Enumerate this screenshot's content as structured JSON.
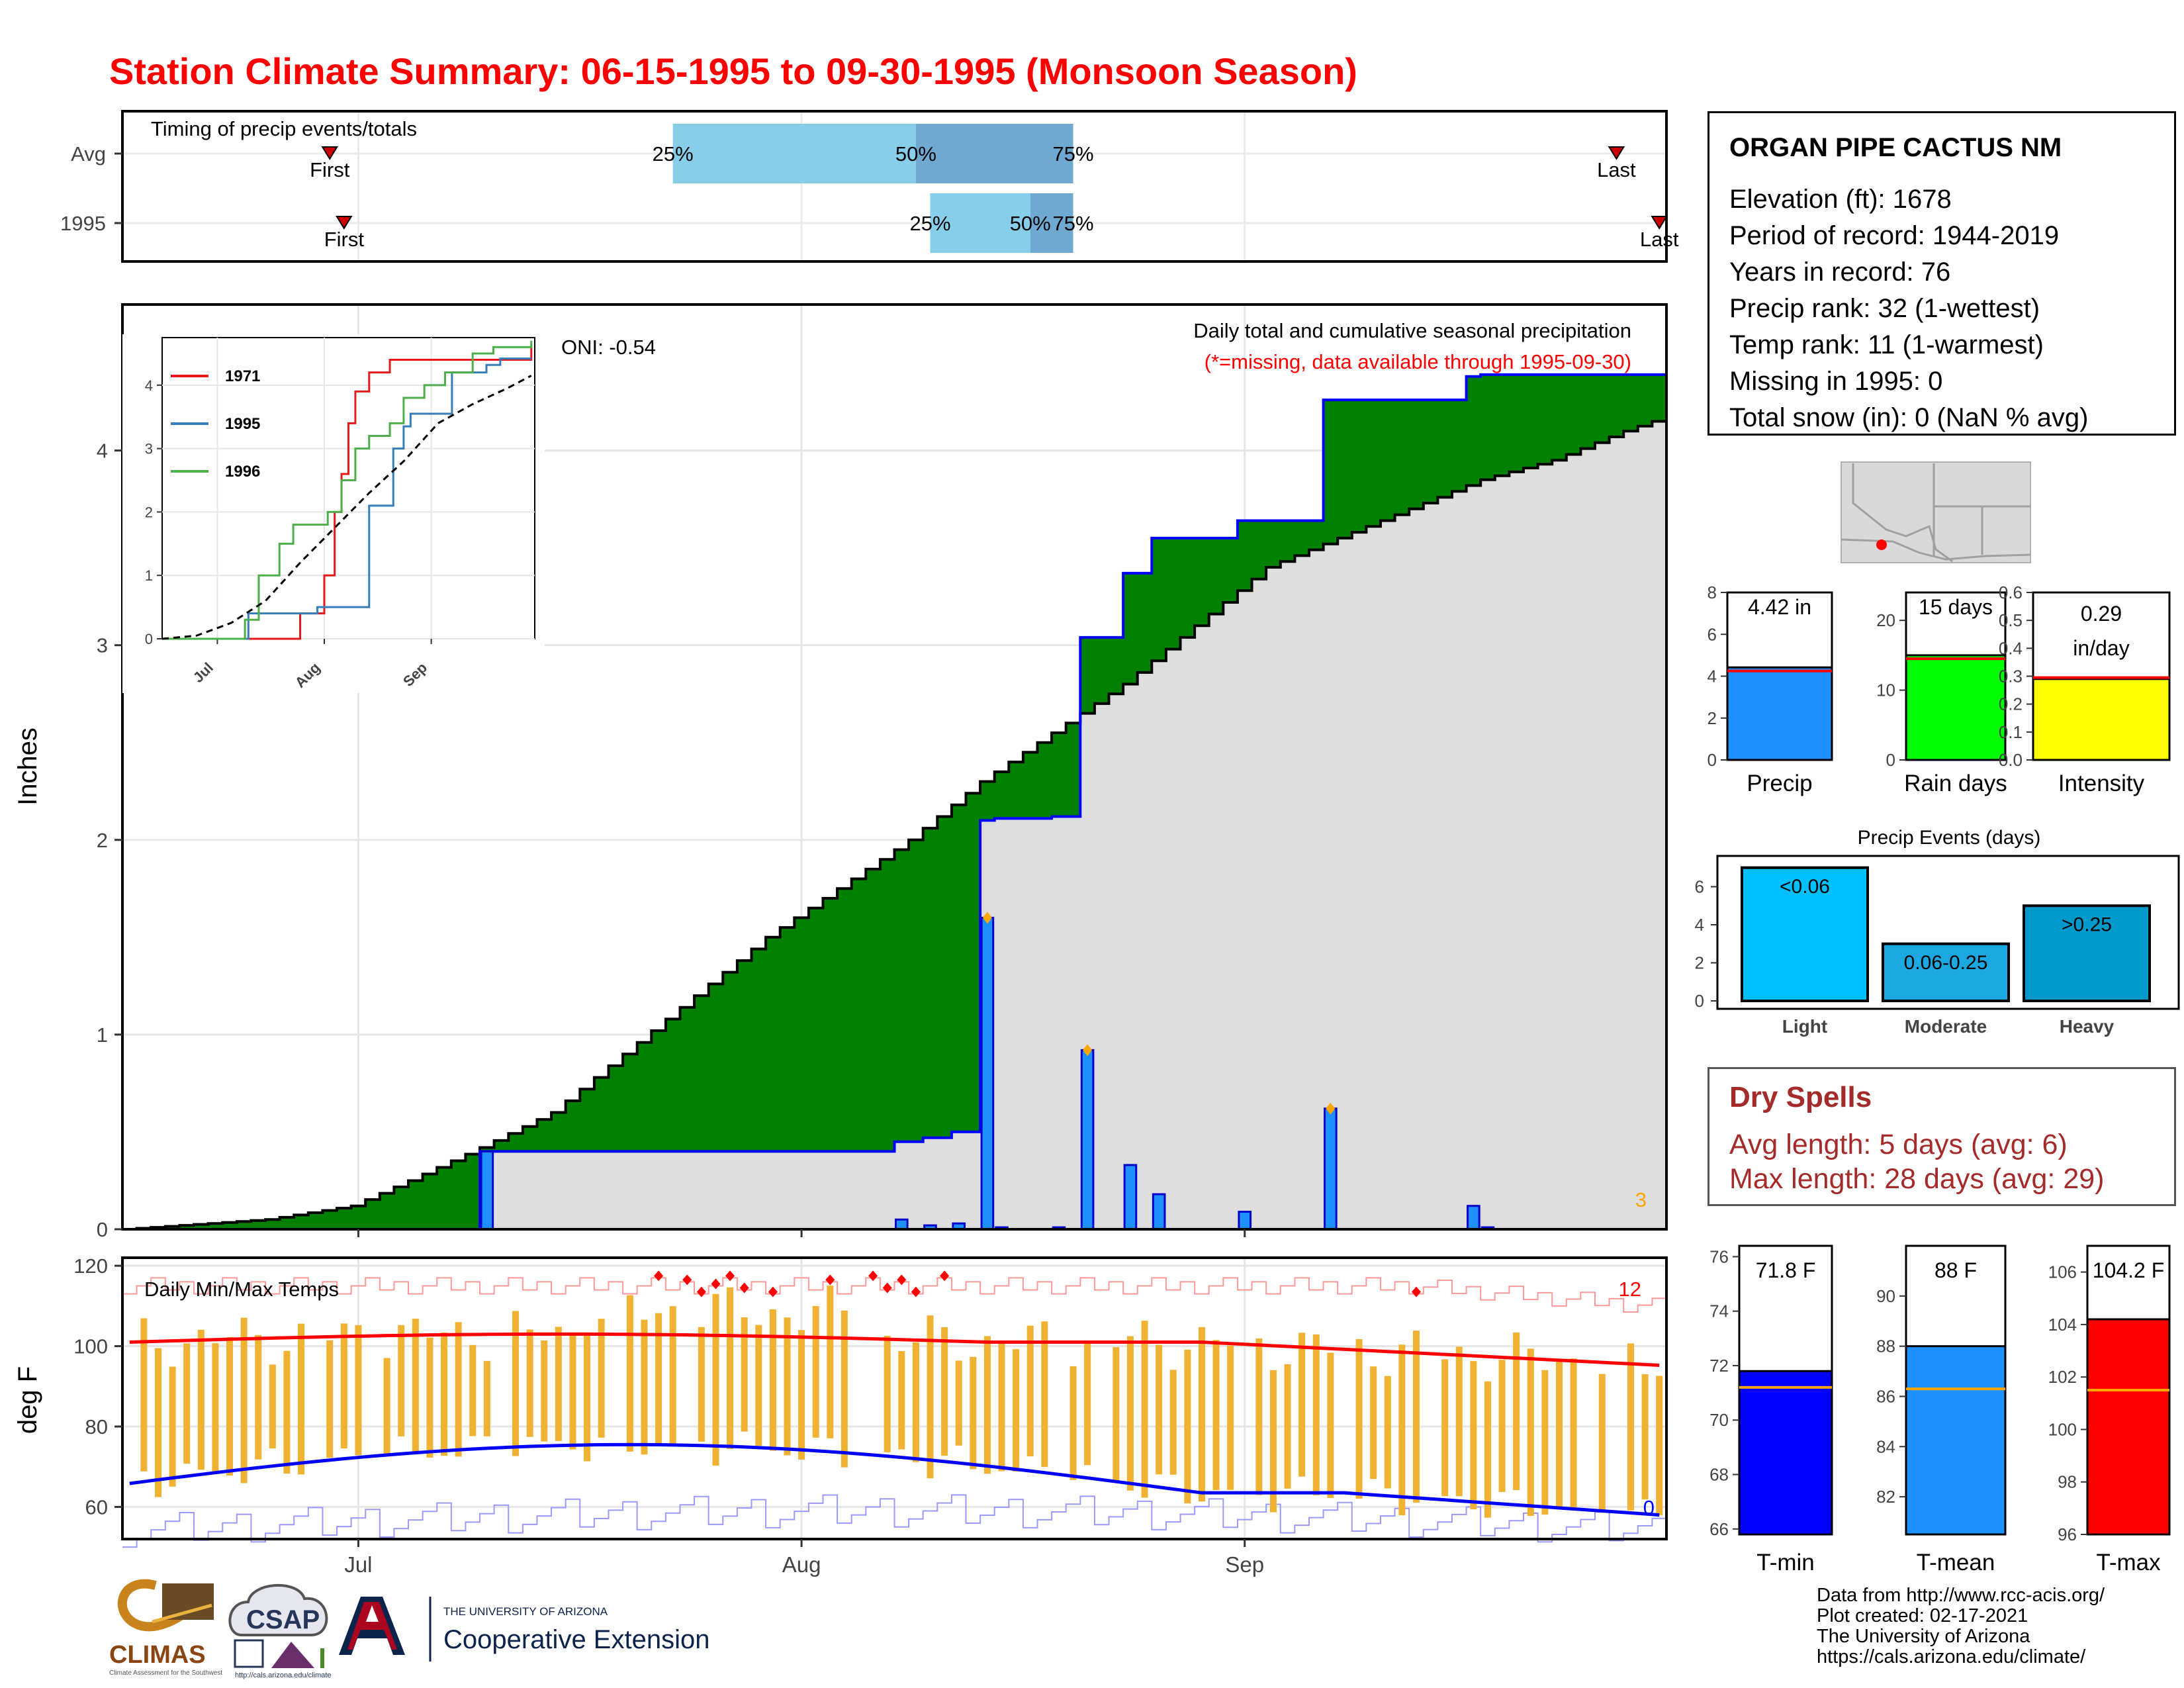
{
  "title": "Station Climate Summary: 06-15-1995 to 09-30-1995 (Monsoon Season)",
  "station": {
    "name": "ORGAN PIPE CACTUS NM",
    "elevation": "Elevation (ft): 1678",
    "period": "Period of record: 1944-2019",
    "years": "Years in record: 76",
    "precip_rank": "Precip rank: 32 (1-wettest)",
    "temp_rank": "Temp rank: 11 (1-warmest)",
    "missing": "Missing in 1995: 0",
    "snow": "Total snow (in): 0 (NaN % avg)"
  },
  "dry_spells": {
    "title": "Dry Spells",
    "avg": "Avg length: 5 days (avg: 6)",
    "max": "Max length: 28 days (avg: 29)"
  },
  "footer": {
    "line1": "Data from http://www.rcc-acis.org/",
    "line2": "Plot created: 02-17-2021",
    "line3": "The University of Arizona",
    "line4": "https://cals.arizona.edu/climate/"
  },
  "logos": {
    "climas": "CLIMAS",
    "climas_sub": "Climate Assessment for the Southwest",
    "csap": "CSAP",
    "csap_url": "http://cals.arizona.edu/climate",
    "ua_top": "THE UNIVERSITY OF ARIZONA",
    "ua_bottom": "Cooperative Extension"
  },
  "colors": {
    "title": "#ff0000",
    "deficit": "#8b5a00",
    "surplus": "#008000",
    "precip_bar": "#1e90ff",
    "precip_line": "#0000ff",
    "tmax": "#ff0000",
    "tmin": "#0000ff",
    "range_bar": "#f0b232",
    "avg_bar_light": "#87ceeb",
    "avg_bar_dark": "#6fa8d0"
  },
  "chart_data": [
    {
      "id": "timing",
      "type": "bar",
      "title": "Timing of precip events/totals",
      "rows": [
        {
          "label": "Avg",
          "first": "Jun 29",
          "q25": "Jul 23",
          "q50": "Aug 9",
          "q75": "Aug 20",
          "last": "Sep 27"
        },
        {
          "label": "1995",
          "first": "Jun 30",
          "q25": "Aug 10",
          "q50": "Aug 17",
          "q75": "Aug 20",
          "last": "Sep 30"
        }
      ],
      "marker_labels": {
        "first": "First",
        "last": "Last",
        "q25": "25%",
        "q50": "50%",
        "q75": "75%"
      }
    },
    {
      "id": "precip",
      "type": "area",
      "title": "Daily total and cumulative seasonal precipitation",
      "subtitle": "(*=missing, data available through 1995-09-30)",
      "annotation": "ONI: -0.54",
      "corner_count": "3",
      "ylabel": "Inches",
      "ylim": [
        0,
        4.75
      ],
      "yticks": [
        0,
        1,
        2,
        3,
        4
      ],
      "x_ticks": [
        {
          "label": "Jul",
          "day": 16
        },
        {
          "label": "Aug",
          "day": 47
        },
        {
          "label": "Sep",
          "day": 78
        }
      ],
      "days": 108,
      "daily_events": [
        {
          "day": 25,
          "value": 0.4
        },
        {
          "day": 54,
          "value": 0.05
        },
        {
          "day": 56,
          "value": 0.02
        },
        {
          "day": 58,
          "value": 0.03
        },
        {
          "day": 60,
          "value": 1.6,
          "marker": true
        },
        {
          "day": 61,
          "value": 0.01
        },
        {
          "day": 65,
          "value": 0.01
        },
        {
          "day": 67,
          "value": 0.92,
          "marker": true
        },
        {
          "day": 70,
          "value": 0.33
        },
        {
          "day": 72,
          "value": 0.18
        },
        {
          "day": 78,
          "value": 0.09
        },
        {
          "day": 84,
          "value": 0.62,
          "marker": true
        },
        {
          "day": 94,
          "value": 0.12
        },
        {
          "day": 95,
          "value": 0.01
        }
      ],
      "avg_cumulative_checkpoints": [
        {
          "day": 0,
          "value": 0
        },
        {
          "day": 10,
          "value": 0.05
        },
        {
          "day": 16,
          "value": 0.12
        },
        {
          "day": 20,
          "value": 0.25
        },
        {
          "day": 25,
          "value": 0.42
        },
        {
          "day": 30,
          "value": 0.6
        },
        {
          "day": 35,
          "value": 0.9
        },
        {
          "day": 40,
          "value": 1.2
        },
        {
          "day": 45,
          "value": 1.5
        },
        {
          "day": 50,
          "value": 1.75
        },
        {
          "day": 55,
          "value": 2.0
        },
        {
          "day": 60,
          "value": 2.3
        },
        {
          "day": 65,
          "value": 2.55
        },
        {
          "day": 67,
          "value": 2.65
        },
        {
          "day": 70,
          "value": 2.8
        },
        {
          "day": 75,
          "value": 3.1
        },
        {
          "day": 80,
          "value": 3.4
        },
        {
          "day": 85,
          "value": 3.55
        },
        {
          "day": 90,
          "value": 3.7
        },
        {
          "day": 95,
          "value": 3.85
        },
        {
          "day": 100,
          "value": 3.95
        },
        {
          "day": 105,
          "value": 4.1
        },
        {
          "day": 107,
          "value": 4.15
        }
      ],
      "observed_total": 4.42
    },
    {
      "id": "inset",
      "type": "line",
      "yticks": [
        0,
        1,
        2,
        3,
        4
      ],
      "x_ticks": [
        "Jul",
        "Aug",
        "Sep"
      ],
      "series": [
        {
          "name": "1971",
          "color": "#e41a1c",
          "points": [
            [
              0,
              0
            ],
            [
              38,
              0
            ],
            [
              40,
              0.4
            ],
            [
              47,
              1.0
            ],
            [
              50,
              2.0
            ],
            [
              52,
              2.6
            ],
            [
              54,
              3.4
            ],
            [
              56,
              3.9
            ],
            [
              60,
              4.2
            ],
            [
              66,
              4.4
            ],
            [
              70,
              4.4
            ],
            [
              84,
              4.4
            ],
            [
              88,
              4.4
            ],
            [
              92,
              4.4
            ],
            [
              98,
              4.4
            ],
            [
              104,
              4.4
            ],
            [
              107,
              4.65
            ]
          ]
        },
        {
          "name": "1995",
          "color": "#377eb8",
          "points": [
            [
              0,
              0
            ],
            [
              25,
              0
            ],
            [
              25,
              0.4
            ],
            [
              40,
              0.4
            ],
            [
              45,
              0.5
            ],
            [
              54,
              0.5
            ],
            [
              60,
              2.1
            ],
            [
              67,
              3.0
            ],
            [
              70,
              3.35
            ],
            [
              72,
              3.55
            ],
            [
              80,
              3.55
            ],
            [
              84,
              4.2
            ],
            [
              94,
              4.32
            ],
            [
              98,
              4.42
            ],
            [
              107,
              4.42
            ]
          ]
        },
        {
          "name": "1996",
          "color": "#4daf4a",
          "points": [
            [
              0,
              0
            ],
            [
              22,
              0
            ],
            [
              24,
              0.3
            ],
            [
              28,
              1.0
            ],
            [
              34,
              1.5
            ],
            [
              38,
              1.8
            ],
            [
              44,
              1.8
            ],
            [
              48,
              2.0
            ],
            [
              52,
              2.5
            ],
            [
              56,
              3.0
            ],
            [
              60,
              3.2
            ],
            [
              66,
              3.4
            ],
            [
              70,
              3.8
            ],
            [
              76,
              4.0
            ],
            [
              82,
              4.2
            ],
            [
              90,
              4.5
            ],
            [
              96,
              4.6
            ],
            [
              107,
              4.7
            ]
          ]
        }
      ],
      "avg_line": [
        [
          0,
          0
        ],
        [
          10,
          0.05
        ],
        [
          20,
          0.25
        ],
        [
          30,
          0.6
        ],
        [
          40,
          1.2
        ],
        [
          50,
          1.75
        ],
        [
          60,
          2.3
        ],
        [
          70,
          2.8
        ],
        [
          80,
          3.4
        ],
        [
          90,
          3.7
        ],
        [
          100,
          3.95
        ],
        [
          107,
          4.15
        ]
      ]
    },
    {
      "id": "temps",
      "type": "bar",
      "title": "Daily Min/Max Temps",
      "ylabel": "deg F",
      "ylim": [
        52,
        122
      ],
      "yticks": [
        60,
        80,
        100,
        120
      ],
      "x_ticks": [
        "Jul",
        "Aug",
        "Sep"
      ],
      "record_high_count": "12",
      "record_low_count": "0",
      "notes": "Daily observed min/max range bars with normal max (red) and normal min (blue) curves and record high/low step lines"
    },
    {
      "id": "precip_summary",
      "type": "bar",
      "panels": [
        {
          "label": "Precip",
          "value": 4.42,
          "value_text": "4.42 in",
          "avg": 4.25,
          "ylim": [
            0,
            8
          ],
          "yticks": [
            0,
            2,
            4,
            6,
            8
          ],
          "color": "#1e90ff"
        },
        {
          "label": "Rain days",
          "value": 15,
          "value_text": "15 days",
          "avg": 14.5,
          "ylim": [
            0,
            24
          ],
          "yticks": [
            0,
            10,
            20
          ],
          "color": "#00ff00"
        },
        {
          "label": "Intensity",
          "value": 0.29,
          "value_text_1": "0.29",
          "value_text_2": "in/day",
          "avg": 0.295,
          "ylim": [
            0,
            0.6
          ],
          "yticks": [
            0.0,
            0.1,
            0.2,
            0.3,
            0.4,
            0.5,
            0.6
          ],
          "color": "#ffff00"
        }
      ]
    },
    {
      "id": "precip_events",
      "type": "bar",
      "title": "Precip Events (days)",
      "categories": [
        "Light",
        "Moderate",
        "Heavy"
      ],
      "values": [
        7,
        3,
        5
      ],
      "bar_labels": [
        "<0.06",
        "0.06-0.25",
        ">0.25"
      ],
      "colors": [
        "#00bfff",
        "#1ca8e0",
        "#0099cc"
      ],
      "ylim": [
        0,
        7.2
      ],
      "yticks": [
        0,
        2,
        4,
        6
      ]
    },
    {
      "id": "temp_summary",
      "type": "bar",
      "panels": [
        {
          "label": "T-min",
          "value": 71.8,
          "value_text": "71.8 F",
          "avg": 71.2,
          "ylim": [
            65.8,
            76.4
          ],
          "yticks": [
            66,
            68,
            70,
            72,
            74,
            76
          ],
          "color": "#0000ff"
        },
        {
          "label": "T-mean",
          "value": 88,
          "value_text": "88 F",
          "avg": 86.3,
          "ylim": [
            80.5,
            92
          ],
          "yticks": [
            82,
            84,
            86,
            88,
            90
          ],
          "color": "#1e90ff"
        },
        {
          "label": "T-max",
          "value": 104.2,
          "value_text": "104.2 F",
          "avg": 101.5,
          "ylim": [
            96,
            107
          ],
          "yticks": [
            96,
            98,
            100,
            102,
            104,
            106
          ],
          "color": "#ff0000"
        }
      ]
    }
  ]
}
